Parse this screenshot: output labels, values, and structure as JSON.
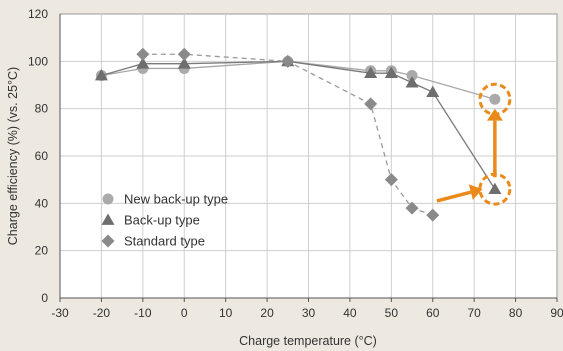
{
  "chart_data": {
    "type": "line",
    "xlabel": "Charge temperature (°C)",
    "ylabel": "Charge efficiency (%) (vs. 25°C)",
    "xlim": [
      -30,
      90
    ],
    "ylim": [
      0,
      120
    ],
    "xticks": [
      -30,
      -20,
      -10,
      0,
      10,
      20,
      30,
      40,
      50,
      60,
      70,
      80,
      90
    ],
    "yticks": [
      0,
      20,
      40,
      60,
      80,
      100,
      120
    ],
    "grid": true,
    "legend_position": "left-middle",
    "series": [
      {
        "name": "New back-up type",
        "marker": "circle",
        "line_style": "solid",
        "color": "#aaaaaa",
        "line_color": "#a8a8a8",
        "points": [
          [
            -20,
            94
          ],
          [
            -10,
            97
          ],
          [
            0,
            97
          ],
          [
            25,
            100
          ],
          [
            45,
            96
          ],
          [
            50,
            96
          ],
          [
            55,
            94
          ],
          [
            75,
            84
          ]
        ]
      },
      {
        "name": "Back-up type",
        "marker": "triangle",
        "line_style": "solid",
        "color": "#6e6e6e",
        "line_color": "#7a7a7a",
        "points": [
          [
            -20,
            94
          ],
          [
            -10,
            99
          ],
          [
            0,
            99
          ],
          [
            25,
            100
          ],
          [
            45,
            95
          ],
          [
            50,
            95
          ],
          [
            55,
            91
          ],
          [
            60,
            87
          ],
          [
            75,
            46
          ]
        ]
      },
      {
        "name": "Standard type",
        "marker": "diamond",
        "line_style": "dashed",
        "color": "#8a8a8a",
        "line_color": "#9a9a9a",
        "points": [
          [
            -10,
            103
          ],
          [
            0,
            103
          ],
          [
            25,
            100
          ],
          [
            45,
            82
          ],
          [
            50,
            50
          ],
          [
            55,
            38
          ],
          [
            60,
            35
          ]
        ]
      }
    ],
    "annotations": {
      "highlight_color": "#ea8a1a",
      "circled_points": [
        [
          75,
          84
        ],
        [
          75,
          46
        ]
      ],
      "arrows": [
        {
          "from": [
            61,
            41
          ],
          "to": [
            72,
            46
          ]
        },
        {
          "from": [
            75,
            51
          ],
          "to": [
            75,
            80
          ]
        }
      ]
    }
  },
  "colors": {
    "background": "#ede9e1",
    "plot_background": "#ffffff",
    "grid": "#cfcfcf",
    "axis": "#555555"
  }
}
